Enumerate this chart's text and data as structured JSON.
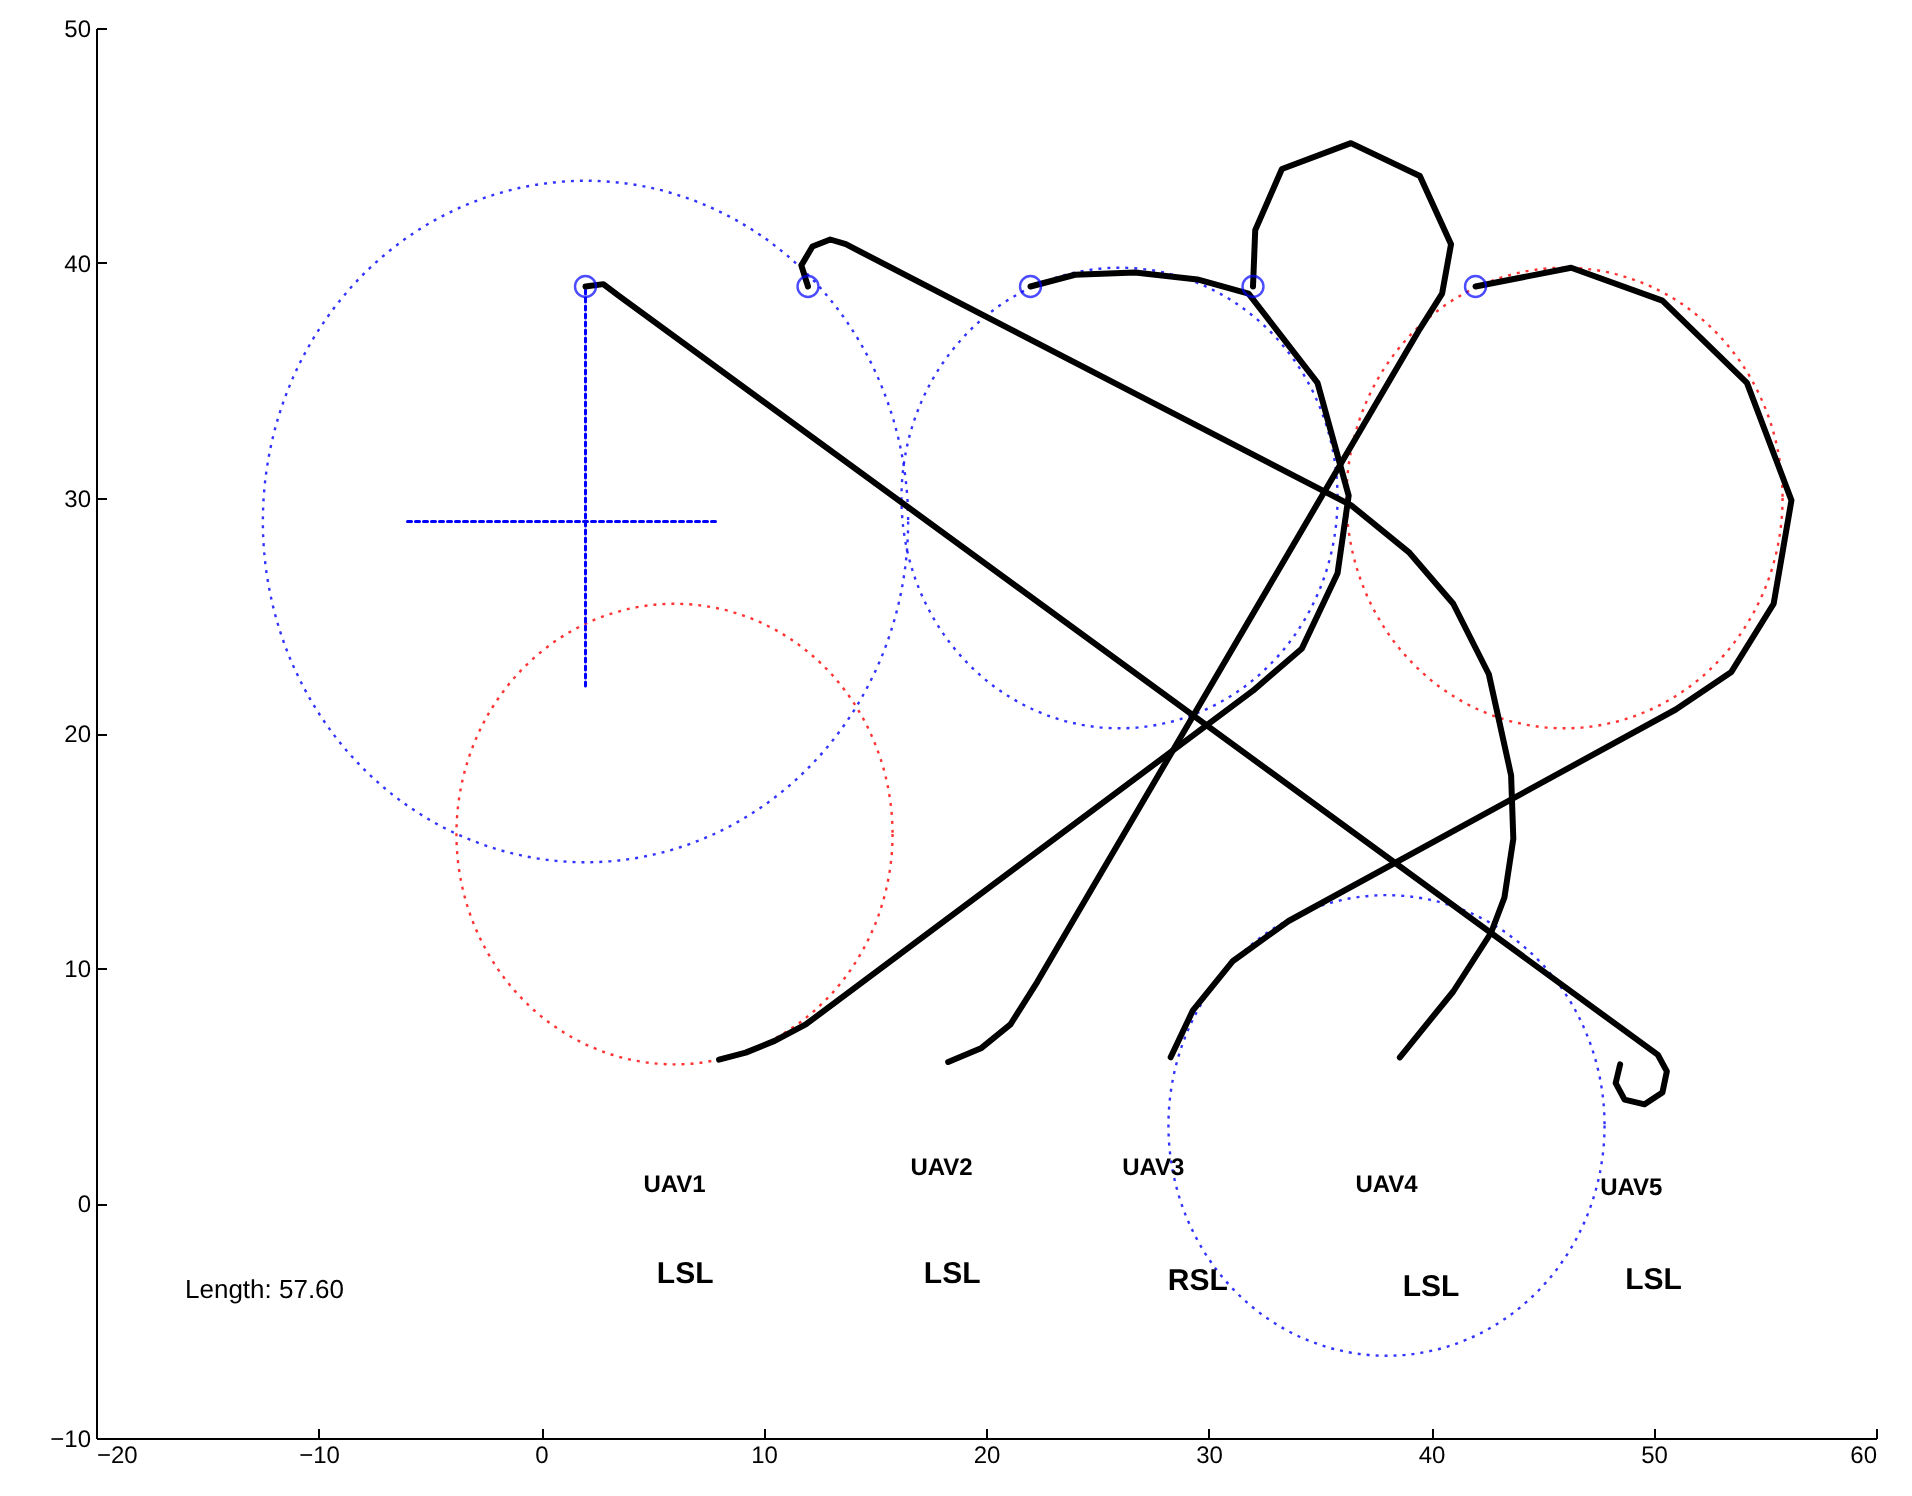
{
  "chart_data": {
    "type": "line",
    "xlim": [
      -20,
      60
    ],
    "ylim": [
      -10,
      50
    ],
    "xticks": [
      -20,
      -10,
      0,
      10,
      20,
      30,
      40,
      50,
      60
    ],
    "yticks": [
      -10,
      0,
      10,
      20,
      30,
      40,
      50
    ],
    "grid": false,
    "series": [
      {
        "color": "#0000ff",
        "line_style": "dotted",
        "x": [
          -6,
          8
        ],
        "values": [
          29,
          29
        ]
      },
      {
        "color": "#0000ff",
        "line_style": "dotted",
        "x": [
          2,
          2
        ],
        "values": [
          22,
          39
        ]
      },
      {
        "color": "#000000",
        "line_style": "solid",
        "x": [
          2,
          2.8,
          3.5,
          50.2,
          50.6,
          50.4,
          49.6,
          48.7,
          48.3,
          48.5
        ],
        "values": [
          39,
          39.1,
          38.6,
          6.3,
          5.6,
          4.7,
          4.2,
          4.4,
          5.1,
          5.9
        ]
      },
      {
        "color": "#000000",
        "line_style": "solid",
        "x": [
          12,
          11.7,
          12.2,
          13,
          13.7,
          36.4,
          39,
          41,
          42.6,
          43.6,
          43.7,
          43.3,
          42.7,
          41,
          38.6
        ],
        "values": [
          39,
          39.9,
          40.7,
          41,
          40.8,
          29.7,
          27.7,
          25.5,
          22.5,
          18.2,
          15.5,
          13,
          11.5,
          9,
          6.2
        ]
      },
      {
        "color": "#000000",
        "line_style": "solid",
        "x": [
          22,
          24,
          26.7,
          29.5,
          31.8,
          34.9,
          36.3,
          35.8,
          34.2,
          32,
          11.9,
          10.5,
          9.2,
          8
        ],
        "values": [
          39,
          39.5,
          39.6,
          39.3,
          38.7,
          34.9,
          30.1,
          26.8,
          23.6,
          21.8,
          7.6,
          6.9,
          6.4,
          6.1
        ]
      },
      {
        "color": "#000000",
        "line_style": "solid",
        "x": [
          32,
          32.1,
          33.3,
          36.4,
          39.5,
          40.9,
          40.5,
          39.5,
          22.3,
          21.1,
          19.8,
          18.3
        ],
        "values": [
          39,
          41.4,
          44,
          45.1,
          43.7,
          40.8,
          38.7,
          37.2,
          9.4,
          7.6,
          6.6,
          6
        ]
      },
      {
        "color": "#000000",
        "line_style": "solid",
        "x": [
          42,
          46.3,
          50.4,
          54.2,
          56.2,
          55.4,
          53.5,
          51,
          33.6,
          31.1,
          29.3,
          28.3
        ],
        "values": [
          39,
          39.8,
          38.4,
          34.9,
          29.9,
          25.5,
          22.6,
          21,
          12,
          10.3,
          8.2,
          6.2
        ]
      },
      {
        "type": "scatter",
        "marker": "circle",
        "color": "#0000ff",
        "x": [
          2,
          12,
          22,
          32,
          42
        ],
        "values": [
          39,
          39,
          39,
          39,
          39
        ]
      }
    ],
    "annotations": [
      "Length: 57.60",
      "UAV1",
      "LSL",
      "UAV2",
      "LSL",
      "UAV3",
      "RSL",
      "UAV4",
      "LSL",
      "UAV5",
      "LSL"
    ]
  }
}
